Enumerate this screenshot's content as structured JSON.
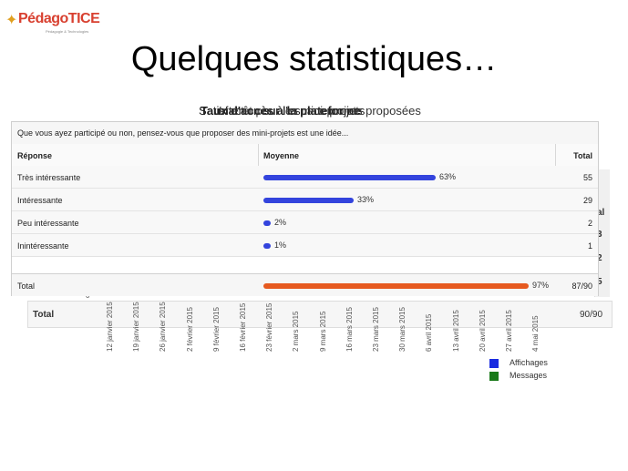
{
  "logo": {
    "text": "PédagoTICE",
    "tagline": "Pédagogie & Technologies"
  },
  "title": "Quelques statistiques…",
  "subtitles": {
    "a": "Satisfaction sur l'espace projets",
    "b": "Taux d'accès à la plateforme",
    "c": "Intérêt pour les mini-projets proposées"
  },
  "poll": {
    "question": "Que vous ayez participé ou non, pensez-vous que proposer des mini-projets est une idée...",
    "headers": {
      "response": "Réponse",
      "average": "Moyenne",
      "total": "Total"
    },
    "rows": [
      {
        "label": "Très intéressante",
        "percent": 63,
        "percent_text": "63%",
        "total": "55"
      },
      {
        "label": "Intéressante",
        "percent": 33,
        "percent_text": "33%",
        "total": "29"
      },
      {
        "label": "Peu intéressante",
        "percent": 2,
        "percent_text": "2%",
        "total": "2"
      },
      {
        "label": "Inintéressante",
        "percent": 1,
        "percent_text": "1%",
        "total": "1"
      }
    ],
    "total_row": {
      "label": "Total",
      "percent": 97,
      "percent_text": "97%",
      "total": "87/90"
    }
  },
  "background": {
    "total_label": "Total",
    "total_value": "90/90",
    "right_values": [
      "al",
      "3",
      "2",
      "5"
    ],
    "zero_tick": "0",
    "dates": [
      "12 janvier 2015",
      "19 janvier 2015",
      "26 janvier 2015",
      "2 février 2015",
      "9 février 2015",
      "16 février 2015",
      "23 février 2015",
      "2 mars 2015",
      "9 mars 2015",
      "16 mars 2015",
      "23 mars 2015",
      "30 mars 2015",
      "6 avril 2015",
      "13 avril 2015",
      "20 avril 2015",
      "27 avril 2015",
      "4 mai 2015"
    ],
    "legend": [
      {
        "label": "Affichages",
        "color": "#1a2be0"
      },
      {
        "label": "Messages",
        "color": "#1a7a1a"
      }
    ]
  }
}
